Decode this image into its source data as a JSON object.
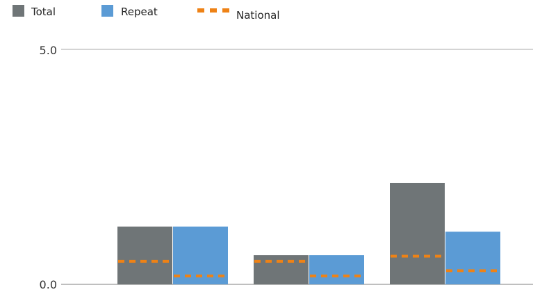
{
  "chart_data": {
    "type": "bar",
    "categories": [
      "",
      "",
      ""
    ],
    "series": [
      {
        "name": "Total",
        "color": "#6f7577",
        "values": [
          1.23,
          0.62,
          2.16
        ]
      },
      {
        "name": "Repeat",
        "color": "#5b9bd5",
        "values": [
          1.23,
          0.62,
          1.12
        ]
      }
    ],
    "reference_lines": {
      "name": "National",
      "color": "#ee8216",
      "style": "dashed",
      "total": [
        0.49,
        0.49,
        0.6
      ],
      "repeat": [
        0.18,
        0.18,
        0.29
      ]
    },
    "ylim": [
      0,
      5
    ],
    "yticks": [
      "0.0",
      "5.0"
    ],
    "xlabel": "",
    "ylabel": "",
    "legend": {
      "position": "top-left",
      "items": [
        "Total",
        "Repeat",
        "National"
      ]
    }
  }
}
